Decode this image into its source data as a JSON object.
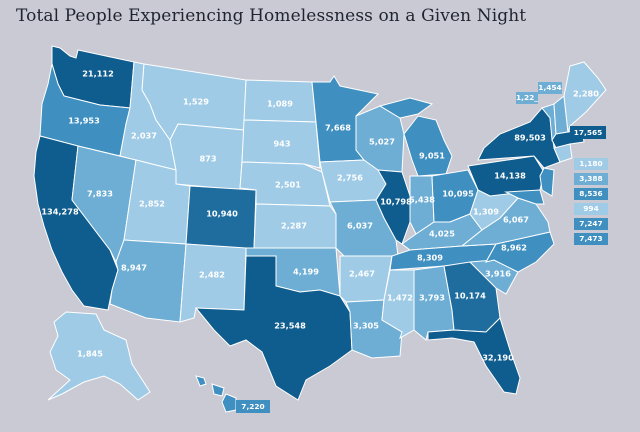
{
  "title": "Total People Experiencing Homelessness on a Given Night",
  "colors": {
    "background": "#c9cad3",
    "low": "#9fcbe6",
    "mid_low": "#6eaed5",
    "mid": "#3f8fc0",
    "high": "#1f6d9f",
    "highest": "#0f5c8e",
    "stroke": "#ffffff"
  },
  "states": {
    "WA": "21,112",
    "OR": "13,953",
    "CA": "134,278",
    "NV": "7,833",
    "ID": "2,037",
    "MT": "1,529",
    "WY": "873",
    "UT": "2,852",
    "AZ": "8,947",
    "NM": "2,482",
    "CO": "10,940",
    "ND": "1,089",
    "SD": "943",
    "NE": "2,501",
    "KS": "2,287",
    "OK": "4,199",
    "TX": "23,548",
    "MN": "7,668",
    "IA": "2,756",
    "MO": "6,037",
    "AR": "2,467",
    "LA": "3,305",
    "WI": "5,027",
    "IL": "10,798",
    "MI": "9,051",
    "IN": "5,438",
    "OH": "10,095",
    "KY": "4,025",
    "TN": "8,309",
    "MS": "1,472",
    "AL": "3,793",
    "GA": "10,174",
    "FL": "32,190",
    "SC": "3,916",
    "NC": "8,962",
    "VA": "6,067",
    "WV": "1,309",
    "PA": "14,138",
    "NY": "89,503",
    "VT": "1,22_",
    "NH": "1,454",
    "ME": "2,280",
    "MA": "17,565",
    "AK": "1,845",
    "HI": "7,220"
  },
  "side_boxes": [
    "1,180",
    "3,388",
    "8,536",
    "994",
    "7,247",
    "7,473"
  ]
}
